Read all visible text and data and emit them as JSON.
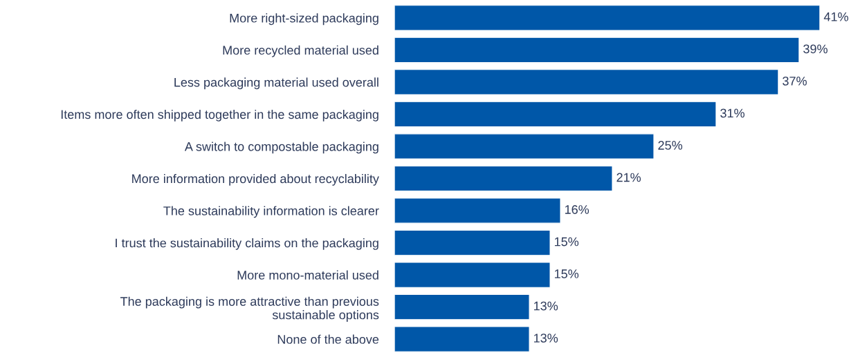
{
  "chart_data": {
    "type": "bar",
    "orientation": "horizontal",
    "categories": [
      "More right-sized packaging",
      "More recycled material used",
      "Less packaging material used overall",
      "Items more often shipped together in the same packaging",
      "A switch to compostable packaging",
      "More information provided about recyclability",
      "The sustainability information is clearer",
      "I trust the sustainability claims on the packaging",
      "More mono-material used",
      "The packaging is more attractive than previous\nsustainable options",
      "None of the above"
    ],
    "values": [
      41,
      39,
      37,
      31,
      25,
      21,
      16,
      15,
      15,
      13,
      13
    ],
    "value_labels": [
      "41%",
      "39%",
      "37%",
      "31%",
      "25%",
      "21%",
      "16%",
      "15%",
      "15%",
      "13%",
      "13%"
    ],
    "color": "#0057a8",
    "tick_labels": "y"
  }
}
